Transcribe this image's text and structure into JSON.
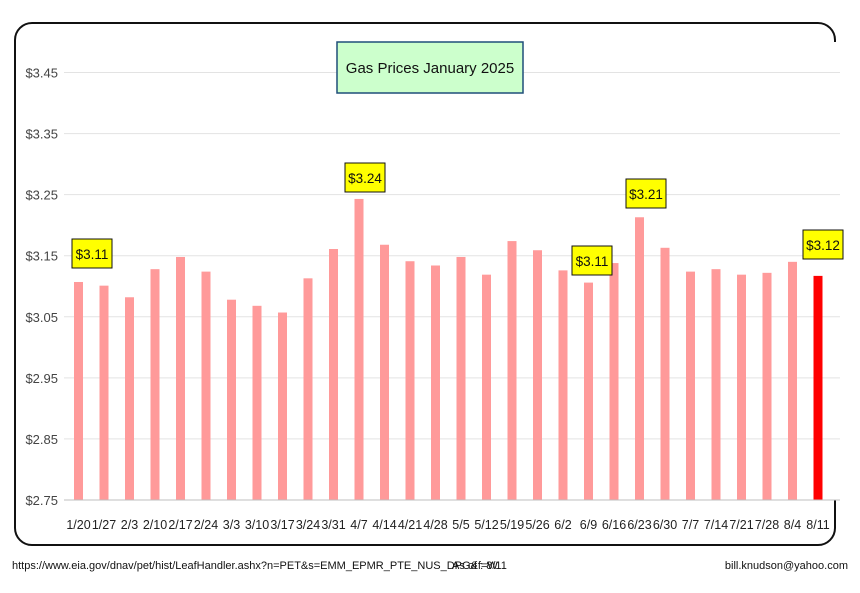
{
  "colors": {
    "bar": "#ff9a9a",
    "current_bar": "#ff0000",
    "callout_fill": "#ffff00",
    "title_fill": "#ccffcc",
    "title_border": "#1f4e79"
  },
  "chart_data": {
    "type": "bar",
    "title": "Gas Prices January 2025",
    "xlabel": "",
    "ylabel": "",
    "ylim": [
      2.75,
      3.5
    ],
    "yticks": [
      "$2.75",
      "$2.85",
      "$2.95",
      "$3.05",
      "$3.15",
      "$3.25",
      "$3.35",
      "$3.45"
    ],
    "ytick_values": [
      2.75,
      2.85,
      2.95,
      3.05,
      3.15,
      3.25,
      3.35,
      3.45
    ],
    "grid": true,
    "categories": [
      "1/20",
      "1/27",
      "2/3",
      "2/10",
      "2/17",
      "2/24",
      "3/3",
      "3/10",
      "3/17",
      "3/24",
      "3/31",
      "4/7",
      "4/14",
      "4/21",
      "4/28",
      "5/5",
      "5/12",
      "5/19",
      "5/26",
      "6/2",
      "6/9",
      "6/16",
      "6/23",
      "6/30",
      "7/7",
      "7/14",
      "7/21",
      "7/28",
      "8/4",
      "8/11"
    ],
    "values": [
      3.107,
      3.101,
      3.082,
      3.128,
      3.148,
      3.124,
      3.078,
      3.068,
      3.057,
      3.113,
      3.161,
      3.243,
      3.168,
      3.141,
      3.134,
      3.148,
      3.119,
      3.174,
      3.159,
      3.126,
      3.106,
      3.138,
      3.213,
      3.163,
      3.124,
      3.128,
      3.119,
      3.122,
      3.14,
      3.117
    ],
    "highlight_index": 29,
    "annotations": [
      {
        "index": 0,
        "label": "$3.11"
      },
      {
        "index": 11,
        "label": "$3.24"
      },
      {
        "index": 20,
        "label": "$3.11"
      },
      {
        "index": 22,
        "label": "$3.21"
      },
      {
        "index": 29,
        "label": "$3.12"
      }
    ]
  },
  "footer": {
    "source_url": "https://www.eia.gov/dnav/pet/hist/LeafHandler.ashx?n=PET&s=EMM_EPMR_PTE_NUS_DPG&f=W",
    "as_of": "As of :  8/11",
    "email": "bill.knudson@yahoo.com"
  }
}
